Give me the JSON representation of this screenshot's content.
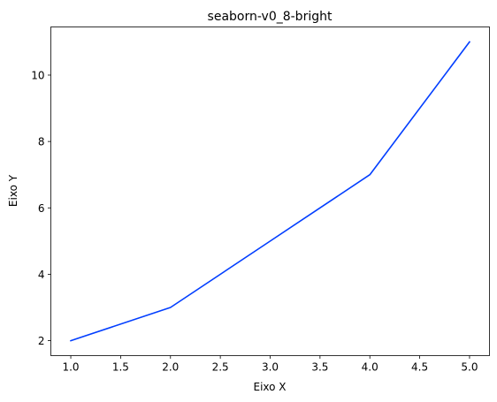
{
  "chart_data": {
    "type": "line",
    "title": "seaborn-v0_8-bright",
    "xlabel": "Eixo X",
    "ylabel": "Eixo Y",
    "x": [
      1,
      2,
      3,
      4,
      5
    ],
    "series": [
      {
        "values": [
          2,
          3,
          5,
          7,
          11
        ],
        "color": "#023eff"
      }
    ],
    "xlim": [
      0.8,
      5.2
    ],
    "ylim": [
      1.55,
      11.45
    ],
    "xticks": [
      1.0,
      1.5,
      2.0,
      2.5,
      3.0,
      3.5,
      4.0,
      4.5,
      5.0
    ],
    "xtick_labels": [
      "1.0",
      "1.5",
      "2.0",
      "2.5",
      "3.0",
      "3.5",
      "4.0",
      "4.5",
      "5.0"
    ],
    "yticks": [
      2,
      4,
      6,
      8,
      10
    ],
    "ytick_labels": [
      "2",
      "4",
      "6",
      "8",
      "10"
    ],
    "grid": false,
    "legend": false
  }
}
